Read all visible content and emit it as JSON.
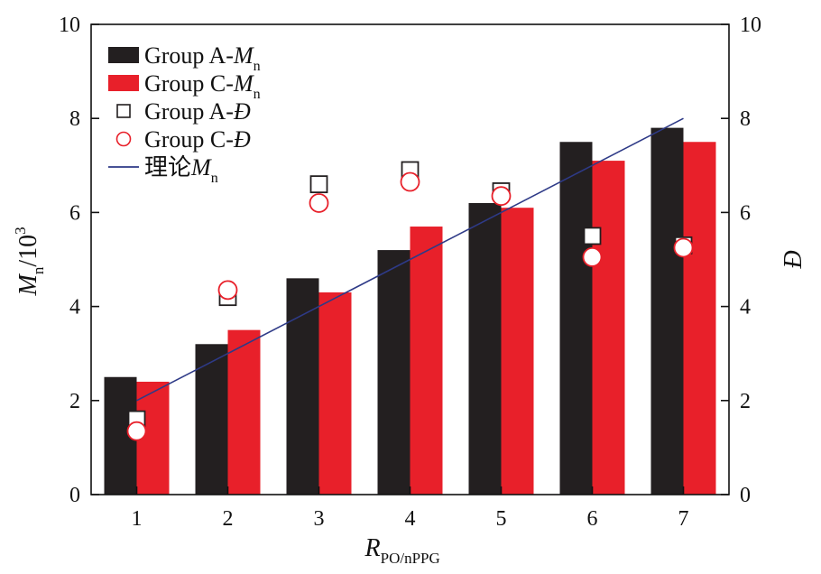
{
  "chart_data": {
    "type": "bar",
    "categories": [
      "1",
      "2",
      "3",
      "4",
      "5",
      "6",
      "7"
    ],
    "xlabel": {
      "main": "R",
      "sub": "PO/nPPG"
    },
    "ylabel_left": {
      "main": "M",
      "sub": "n",
      "rest": "/10",
      "sup": "3"
    },
    "ylabel_right": "Đ",
    "ylim_left": [
      0,
      10
    ],
    "ylim_right": [
      0,
      10
    ],
    "yticks_left": [
      "0",
      "2",
      "4",
      "6",
      "8",
      "10"
    ],
    "yticks_right": [
      "0",
      "2",
      "4",
      "6",
      "8",
      "10"
    ],
    "series": [
      {
        "name": "Group A-Mn",
        "kind": "bar",
        "axis": "left",
        "color": "#231f20",
        "values": [
          2.5,
          3.2,
          4.6,
          5.2,
          6.2,
          7.5,
          7.8
        ]
      },
      {
        "name": "Group C-Mn",
        "kind": "bar",
        "axis": "left",
        "color": "#e8202a",
        "values": [
          2.4,
          3.5,
          4.3,
          5.7,
          6.1,
          7.1,
          7.5
        ]
      },
      {
        "name": "Group A-Đ",
        "kind": "scatter",
        "marker": "square",
        "axis": "right",
        "color": "#231f20",
        "values": [
          1.6,
          4.2,
          6.6,
          6.9,
          6.45,
          5.5,
          5.3
        ]
      },
      {
        "name": "Group C-Đ",
        "kind": "scatter",
        "marker": "circle",
        "axis": "right",
        "color": "#e8202a",
        "values": [
          1.35,
          4.35,
          6.2,
          6.65,
          6.35,
          5.05,
          5.25
        ]
      },
      {
        "name": "理论Mn",
        "kind": "line",
        "axis": "left",
        "color": "#2e3a87",
        "values": [
          2,
          3,
          4,
          5,
          6,
          7,
          8
        ]
      }
    ],
    "legend": {
      "position": "top-left",
      "entries": [
        {
          "prefix": "Group A-",
          "var": "M",
          "sub": "n"
        },
        {
          "prefix": "Group C-",
          "var": "M",
          "sub": "n"
        },
        {
          "prefix": "Group A-",
          "var": "Đ",
          "sub": ""
        },
        {
          "prefix": "Group C-",
          "var": "Đ",
          "sub": ""
        },
        {
          "prefix": "理论",
          "var": "M",
          "sub": "n"
        }
      ]
    },
    "grid": false
  }
}
